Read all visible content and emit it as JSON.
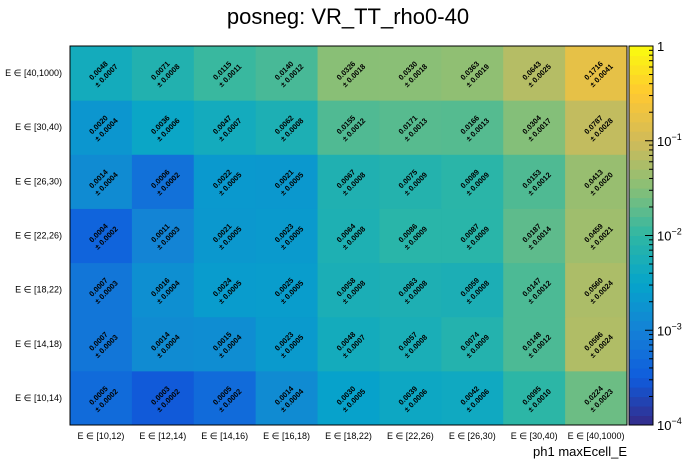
{
  "chart_data": {
    "type": "heatmap",
    "title": "posneg: VR_TT_rho0-40",
    "xlabel": "ph1 maxEcell_E",
    "ylabel": "",
    "x_categories": [
      "E ∈ [10,12)",
      "E ∈ [12,14)",
      "E ∈ [14,16)",
      "E ∈ [16,18)",
      "E ∈ [18,22)",
      "E ∈ [22,26)",
      "E ∈ [26,30)",
      "E ∈ [30,40)",
      "E ∈ [40,1000)"
    ],
    "y_categories": [
      "E ∈ [10,14)",
      "E ∈ [14,18)",
      "E ∈ [18,22)",
      "E ∈ [22,26)",
      "E ∈ [26,30)",
      "E ∈ [30,40)",
      "E ∈ [40,1000)"
    ],
    "values": [
      [
        "0.0005",
        "0.0003",
        "0.0005",
        "0.0014",
        "0.0030",
        "0.0039",
        "0.0042",
        "0.0095",
        "0.0224"
      ],
      [
        "0.0007",
        "0.0014",
        "0.0015",
        "0.0023",
        "0.0048",
        "0.0057",
        "0.0074",
        "0.0148",
        "0.0596"
      ],
      [
        "0.0007",
        "0.0016",
        "0.0024",
        "0.0025",
        "0.0058",
        "0.0063",
        "0.0059",
        "0.0147",
        "0.0560"
      ],
      [
        "0.0004",
        "0.0011",
        "0.0021",
        "0.0023",
        "0.0064",
        "0.0086",
        "0.0087",
        "0.0187",
        "0.0459"
      ],
      [
        "0.0014",
        "0.0006",
        "0.0022",
        "0.0021",
        "0.0067",
        "0.0075",
        "0.0089",
        "0.0153",
        "0.0413"
      ],
      [
        "0.0020",
        "0.0036",
        "0.0047",
        "0.0062",
        "0.0155",
        "0.0171",
        "0.0166",
        "0.0304",
        "0.0787"
      ],
      [
        "0.0048",
        "0.0071",
        "0.0115",
        "0.0140",
        "0.0326",
        "0.0330",
        "0.0363",
        "0.0643",
        "0.1716"
      ]
    ],
    "errors": [
      [
        "± 0.0002",
        "± 0.0002",
        "± 0.0002",
        "± 0.0004",
        "± 0.0005",
        "± 0.0006",
        "± 0.0006",
        "± 0.0010",
        "± 0.0023"
      ],
      [
        "± 0.0003",
        "± 0.0004",
        "± 0.0004",
        "± 0.0005",
        "± 0.0007",
        "± 0.0008",
        "± 0.0009",
        "± 0.0012",
        "± 0.0024"
      ],
      [
        "± 0.0003",
        "± 0.0004",
        "± 0.0005",
        "± 0.0005",
        "± 0.0008",
        "± 0.0008",
        "± 0.0008",
        "± 0.0012",
        "± 0.0024"
      ],
      [
        "± 0.0002",
        "± 0.0003",
        "± 0.0005",
        "± 0.0005",
        "± 0.0008",
        "± 0.0009",
        "± 0.0009",
        "± 0.0014",
        "± 0.0021"
      ],
      [
        "± 0.0004",
        "± 0.0002",
        "± 0.0005",
        "± 0.0005",
        "± 0.0008",
        "± 0.0009",
        "± 0.0009",
        "± 0.0012",
        "± 0.0020"
      ],
      [
        "± 0.0004",
        "± 0.0006",
        "± 0.0007",
        "± 0.0008",
        "± 0.0012",
        "± 0.0013",
        "± 0.0013",
        "± 0.0017",
        "± 0.0028"
      ],
      [
        "± 0.0007",
        "± 0.0008",
        "± 0.0011",
        "± 0.0012",
        "± 0.0018",
        "± 0.0018",
        "± 0.0019",
        "± 0.0025",
        "± 0.0041"
      ]
    ],
    "z_scale": "log",
    "zlim": [
      0.0001,
      1
    ],
    "z_ticks": [
      {
        "value": 1,
        "base": "1",
        "exp": ""
      },
      {
        "value": 0.1,
        "base": "10",
        "exp": "−1"
      },
      {
        "value": 0.01,
        "base": "10",
        "exp": "−2"
      },
      {
        "value": 0.001,
        "base": "10",
        "exp": "−3"
      },
      {
        "value": 0.0001,
        "base": "10",
        "exp": "−4"
      }
    ],
    "colormap": [
      "#352a87",
      "#0f5cdd",
      "#1481d6",
      "#06a4ca",
      "#2eb7a4",
      "#87bf77",
      "#d1bb59",
      "#fec832",
      "#f9fb0e"
    ],
    "grid": false,
    "legend": "none"
  }
}
